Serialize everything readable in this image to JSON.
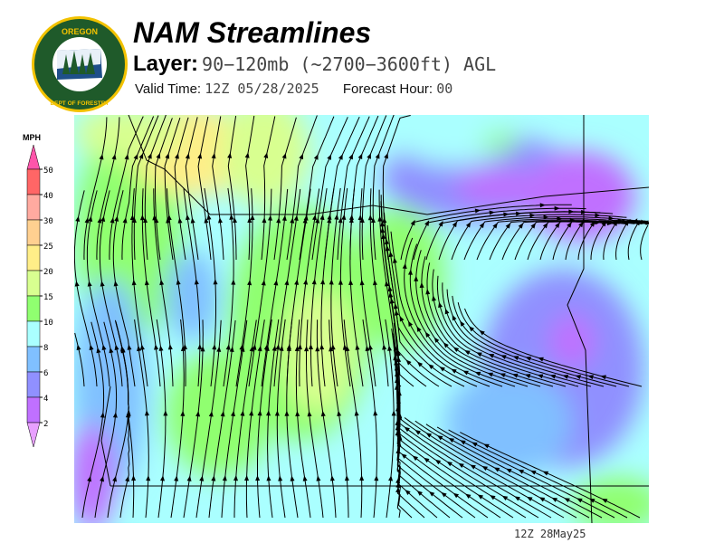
{
  "header": {
    "title": "NAM Streamlines",
    "layer_label": "Layer:",
    "layer_value": "90−120mb (~2700−3600ft) AGL",
    "valid_label": "Valid Time:",
    "valid_value": "12Z 05/28/2025",
    "forecast_label": "Forecast Hour:",
    "forecast_value": "00"
  },
  "logo": {
    "text_top": "OREGON",
    "text_bottom": "DEPARTMENT OF FORESTRY",
    "colors": {
      "ring": "#f2c200",
      "field": "#1f5a2a"
    }
  },
  "colorbar": {
    "unit": "MPH",
    "ticks": [
      "50",
      "40",
      "30",
      "25",
      "20",
      "15",
      "10",
      "8",
      "6",
      "4",
      "2"
    ],
    "bins": [
      {
        "range": "50+",
        "color": "#ff55aa"
      },
      {
        "range": "40-50",
        "color": "#ff6666"
      },
      {
        "range": "30-40",
        "color": "#ffaaa0"
      },
      {
        "range": "25-30",
        "color": "#ffd090"
      },
      {
        "range": "20-25",
        "color": "#ffee88"
      },
      {
        "range": "15-20",
        "color": "#d8ff90"
      },
      {
        "range": "10-15",
        "color": "#90ff70"
      },
      {
        "range": "8-10",
        "color": "#aaffff"
      },
      {
        "range": "6-8",
        "color": "#80c0ff"
      },
      {
        "range": "4-6",
        "color": "#9090ff"
      },
      {
        "range": "2-4",
        "color": "#c070ff"
      },
      {
        "range": "<2",
        "color": "#e8a0ff"
      }
    ]
  },
  "map": {
    "streamline_color": "#000000",
    "border_color": "#000000"
  },
  "footer": {
    "timestamp": "12Z 28May25"
  }
}
